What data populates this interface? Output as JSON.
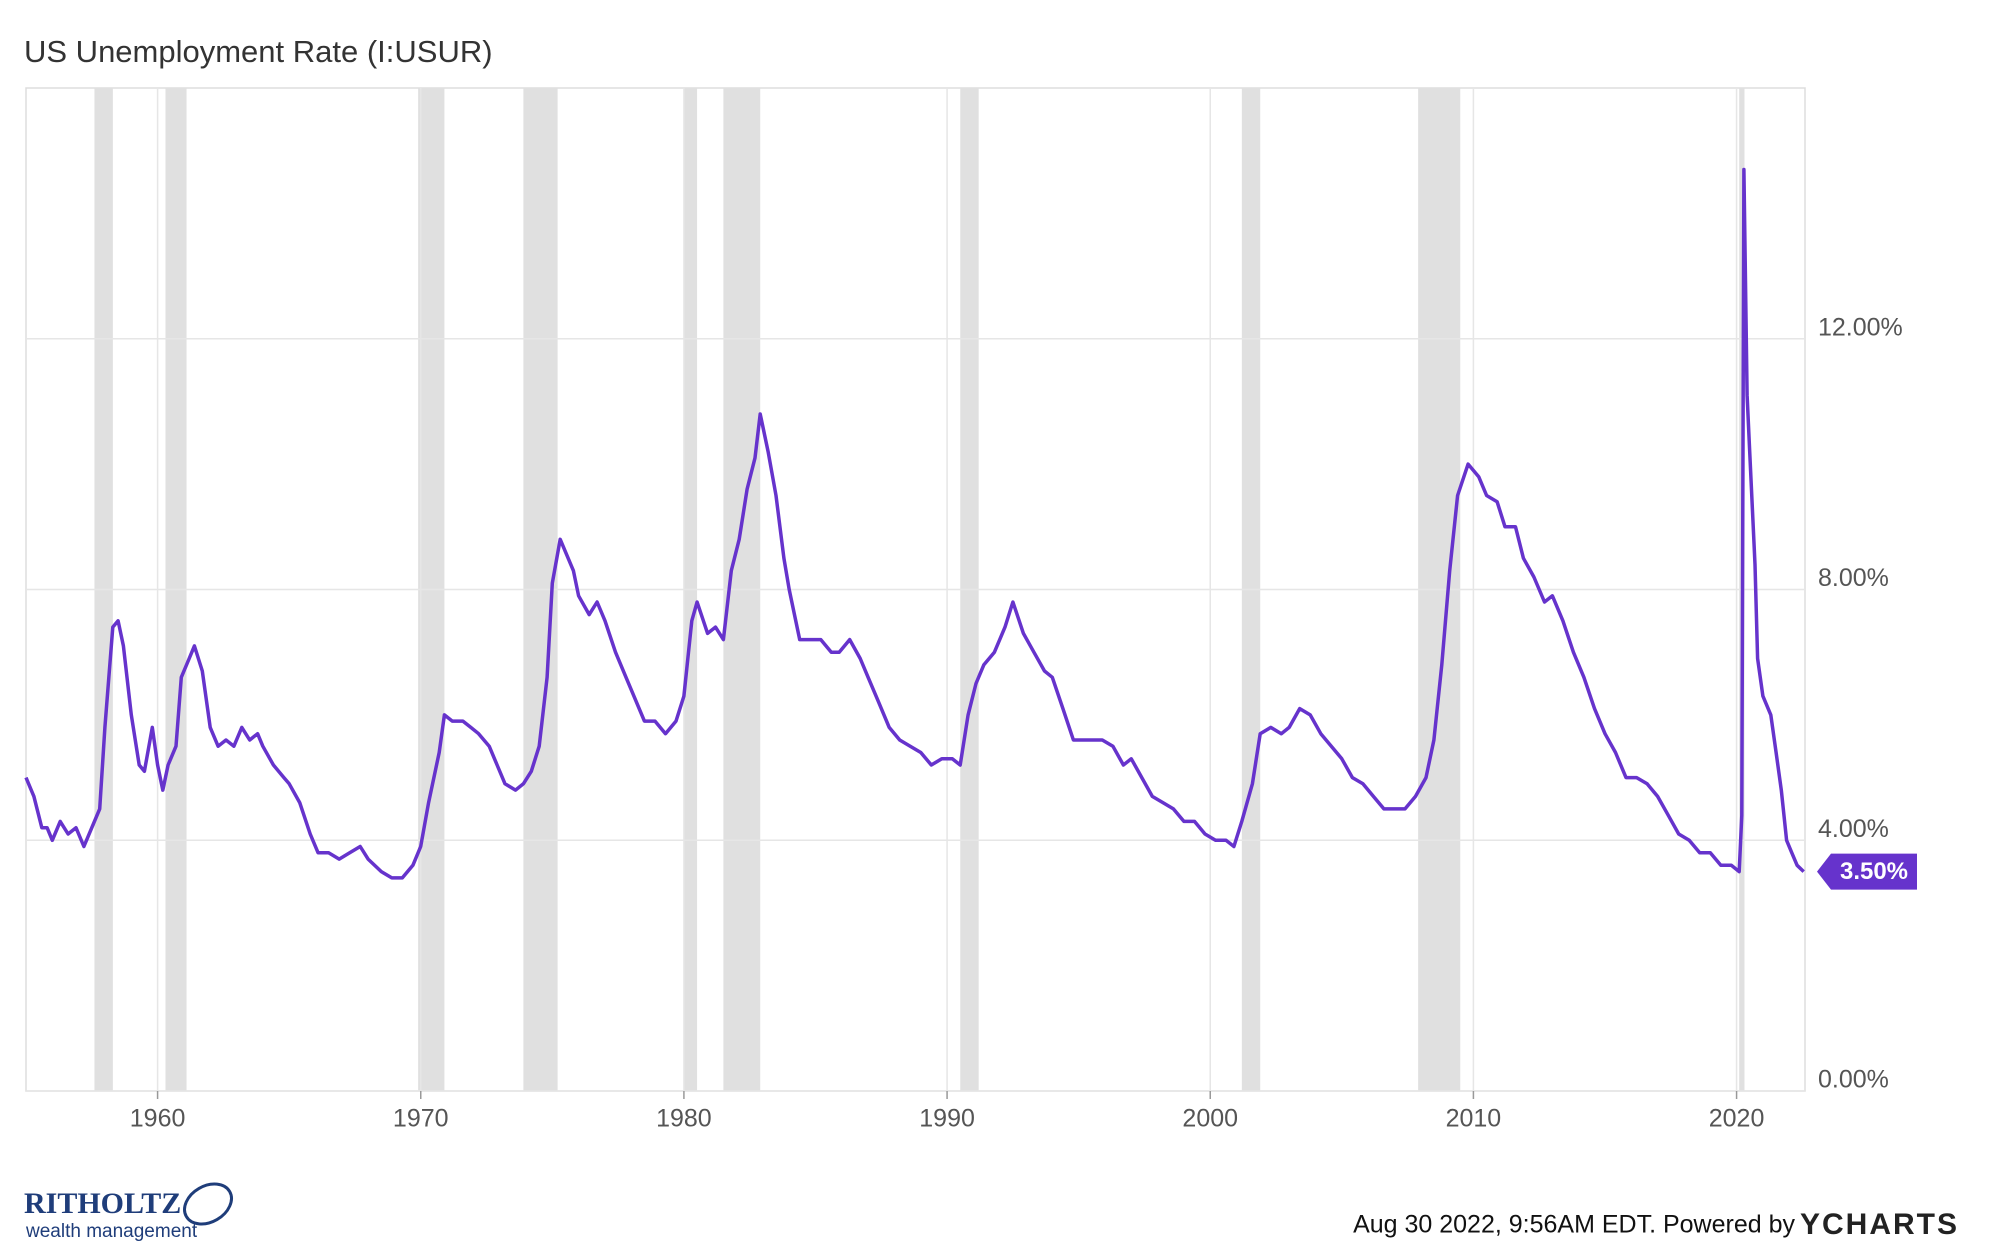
{
  "chart_data": {
    "type": "line",
    "title": "US Unemployment Rate (I:USUR)",
    "x": [
      1955.0,
      1955.3,
      1955.6,
      1955.8,
      1956.0,
      1956.3,
      1956.6,
      1956.9,
      1957.2,
      1957.5,
      1957.8,
      1958.0,
      1958.3,
      1958.5,
      1958.7,
      1959.0,
      1959.3,
      1959.5,
      1959.8,
      1960.0,
      1960.2,
      1960.4,
      1960.7,
      1960.9,
      1961.2,
      1961.4,
      1961.7,
      1962.0,
      1962.3,
      1962.6,
      1962.9,
      1963.2,
      1963.5,
      1963.8,
      1964.0,
      1964.4,
      1964.8,
      1965.0,
      1965.4,
      1965.8,
      1966.1,
      1966.5,
      1966.9,
      1967.3,
      1967.7,
      1968.0,
      1968.5,
      1968.9,
      1969.3,
      1969.7,
      1970.0,
      1970.3,
      1970.7,
      1970.9,
      1971.2,
      1971.6,
      1971.9,
      1972.2,
      1972.6,
      1972.9,
      1973.2,
      1973.6,
      1973.9,
      1974.2,
      1974.5,
      1974.8,
      1975.0,
      1975.3,
      1975.5,
      1975.8,
      1976.0,
      1976.4,
      1976.7,
      1977.0,
      1977.4,
      1977.8,
      1978.1,
      1978.5,
      1978.9,
      1979.3,
      1979.7,
      1980.0,
      1980.3,
      1980.5,
      1980.9,
      1981.2,
      1981.5,
      1981.8,
      1982.1,
      1982.4,
      1982.7,
      1982.9,
      1983.2,
      1983.5,
      1983.8,
      1984.0,
      1984.4,
      1984.8,
      1985.2,
      1985.6,
      1985.9,
      1986.3,
      1986.7,
      1987.0,
      1987.4,
      1987.8,
      1988.2,
      1988.6,
      1989.0,
      1989.4,
      1989.8,
      1990.2,
      1990.5,
      1990.8,
      1991.1,
      1991.4,
      1991.8,
      1992.2,
      1992.5,
      1992.9,
      1993.3,
      1993.7,
      1994.0,
      1994.4,
      1994.8,
      1995.2,
      1995.6,
      1995.9,
      1996.3,
      1996.7,
      1997.0,
      1997.4,
      1997.8,
      1998.2,
      1998.6,
      1999.0,
      1999.4,
      1999.8,
      2000.2,
      2000.6,
      2000.9,
      2001.2,
      2001.6,
      2001.9,
      2002.3,
      2002.7,
      2003.0,
      2003.4,
      2003.8,
      2004.2,
      2004.6,
      2005.0,
      2005.4,
      2005.8,
      2006.2,
      2006.6,
      2007.0,
      2007.4,
      2007.8,
      2008.2,
      2008.5,
      2008.8,
      2009.1,
      2009.4,
      2009.8,
      2010.2,
      2010.5,
      2010.9,
      2011.2,
      2011.6,
      2011.9,
      2012.3,
      2012.7,
      2013.0,
      2013.4,
      2013.8,
      2014.2,
      2014.6,
      2015.0,
      2015.4,
      2015.8,
      2016.2,
      2016.6,
      2017.0,
      2017.4,
      2017.8,
      2018.2,
      2018.6,
      2019.0,
      2019.4,
      2019.8,
      2020.1,
      2020.2,
      2020.28,
      2020.4,
      2020.5,
      2020.7,
      2020.8,
      2021.0,
      2021.3,
      2021.5,
      2021.7,
      2021.9,
      2022.1,
      2022.3,
      2022.55
    ],
    "series": [
      {
        "name": "US Unemployment Rate",
        "color": "#6633cc",
        "values": [
          5.0,
          4.7,
          4.2,
          4.2,
          4.0,
          4.3,
          4.1,
          4.2,
          3.9,
          4.2,
          4.5,
          5.8,
          7.4,
          7.5,
          7.1,
          6.0,
          5.2,
          5.1,
          5.8,
          5.2,
          4.8,
          5.2,
          5.5,
          6.6,
          6.9,
          7.1,
          6.7,
          5.8,
          5.5,
          5.6,
          5.5,
          5.8,
          5.6,
          5.7,
          5.5,
          5.2,
          5.0,
          4.9,
          4.6,
          4.1,
          3.8,
          3.8,
          3.7,
          3.8,
          3.9,
          3.7,
          3.5,
          3.4,
          3.4,
          3.6,
          3.9,
          4.6,
          5.4,
          6.0,
          5.9,
          5.9,
          5.8,
          5.7,
          5.5,
          5.2,
          4.9,
          4.8,
          4.9,
          5.1,
          5.5,
          6.6,
          8.1,
          8.8,
          8.6,
          8.3,
          7.9,
          7.6,
          7.8,
          7.5,
          7.0,
          6.6,
          6.3,
          5.9,
          5.9,
          5.7,
          5.9,
          6.3,
          7.5,
          7.8,
          7.3,
          7.4,
          7.2,
          8.3,
          8.8,
          9.6,
          10.1,
          10.8,
          10.2,
          9.5,
          8.5,
          8.0,
          7.2,
          7.2,
          7.2,
          7.0,
          7.0,
          7.2,
          6.9,
          6.6,
          6.2,
          5.8,
          5.6,
          5.5,
          5.4,
          5.2,
          5.3,
          5.3,
          5.2,
          6.0,
          6.5,
          6.8,
          7.0,
          7.4,
          7.8,
          7.3,
          7.0,
          6.7,
          6.6,
          6.1,
          5.6,
          5.6,
          5.6,
          5.6,
          5.5,
          5.2,
          5.3,
          5.0,
          4.7,
          4.6,
          4.5,
          4.3,
          4.3,
          4.1,
          4.0,
          4.0,
          3.9,
          4.3,
          4.9,
          5.7,
          5.8,
          5.7,
          5.8,
          6.1,
          6.0,
          5.7,
          5.5,
          5.3,
          5.0,
          4.9,
          4.7,
          4.5,
          4.5,
          4.5,
          4.7,
          5.0,
          5.6,
          6.8,
          8.3,
          9.5,
          10.0,
          9.8,
          9.5,
          9.4,
          9.0,
          9.0,
          8.5,
          8.2,
          7.8,
          7.9,
          7.5,
          7.0,
          6.6,
          6.1,
          5.7,
          5.4,
          5.0,
          5.0,
          4.9,
          4.7,
          4.4,
          4.1,
          4.0,
          3.8,
          3.8,
          3.6,
          3.6,
          3.5,
          4.4,
          14.7,
          11.1,
          10.2,
          8.4,
          6.9,
          6.3,
          6.0,
          5.4,
          4.8,
          4.0,
          3.8,
          3.6,
          3.5
        ]
      }
    ],
    "end_label": {
      "value": 3.5,
      "label": "3.50%"
    },
    "recessions": [
      [
        1957.6,
        1958.3
      ],
      [
        1960.3,
        1961.1
      ],
      [
        1969.9,
        1970.9
      ],
      [
        1973.9,
        1975.2
      ],
      [
        1980.0,
        1980.5
      ],
      [
        1981.5,
        1982.9
      ],
      [
        1990.5,
        1991.2
      ],
      [
        2001.2,
        2001.9
      ],
      [
        2007.9,
        2009.5
      ],
      [
        2020.1,
        2020.3
      ]
    ],
    "xlim": [
      1955.0,
      2022.6
    ],
    "xticks": [
      1960,
      1970,
      1980,
      1990,
      2000,
      2010,
      2020
    ],
    "ylim": [
      0,
      16
    ],
    "yticks": [
      {
        "value": 0,
        "label": "0.00%"
      },
      {
        "value": 4,
        "label": "4.00%"
      },
      {
        "value": 8,
        "label": "8.00%"
      },
      {
        "value": 12,
        "label": "12.00%"
      }
    ],
    "grid": true,
    "footer": "Aug 30 2022, 9:56AM EDT. Powered by",
    "footer_brand": "YCHARTS",
    "logo_name": "RITHOLTZ",
    "logo_sub": "wealth management"
  }
}
